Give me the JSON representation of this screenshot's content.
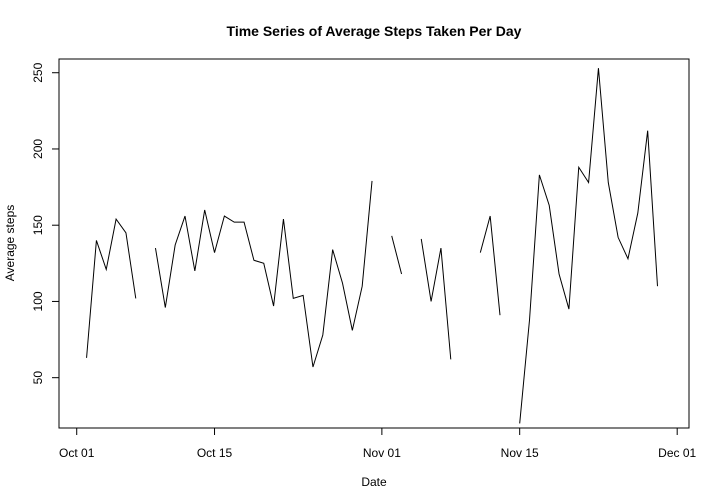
{
  "chart_data": {
    "type": "line",
    "title": "Time Series of Average Steps Taken Per Day",
    "xlabel": "Date",
    "ylabel": "Average steps",
    "x_tick_labels": [
      "Oct 01",
      "Oct 15",
      "Nov 01",
      "Nov 15",
      "Dec 01"
    ],
    "x_tick_days": [
      0,
      14,
      31,
      45,
      61
    ],
    "y_ticks": [
      50,
      100,
      150,
      200,
      250
    ],
    "xlim": [
      -1.8,
      62.2
    ],
    "ylim": [
      17,
      259
    ],
    "grid": false,
    "series": [
      {
        "name": "Average steps",
        "start_date": "2012-10-01",
        "values": [
          null,
          63,
          140,
          121,
          154,
          145,
          102,
          null,
          135,
          96,
          137,
          156,
          120,
          160,
          132,
          156,
          152,
          152,
          127,
          125,
          97,
          154,
          102,
          104,
          57,
          78,
          134,
          112,
          81,
          110,
          179,
          null,
          143,
          118,
          null,
          141,
          100,
          135,
          62,
          null,
          null,
          132,
          156,
          91,
          null,
          20,
          88,
          183,
          163,
          118,
          95,
          188,
          178,
          253,
          178,
          142,
          128,
          158,
          212,
          110,
          null
        ]
      }
    ]
  }
}
